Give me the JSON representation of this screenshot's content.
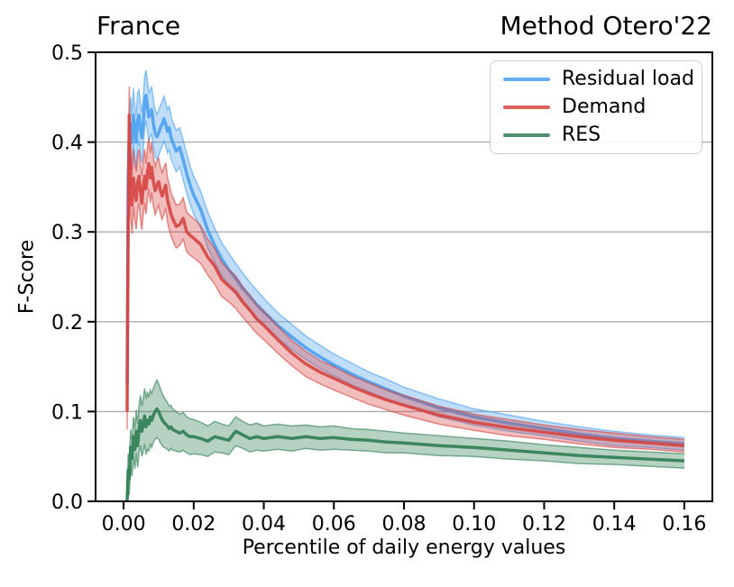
{
  "chart_data": {
    "type": "line",
    "title_left": "France",
    "title_right": "Method Otero'22",
    "xlabel": "Percentile of daily energy values",
    "ylabel": "F-Score",
    "xlim": [
      -0.008,
      0.168
    ],
    "ylim": [
      0.0,
      0.5
    ],
    "xticks": [
      0.0,
      0.02,
      0.04,
      0.06,
      0.08,
      0.1,
      0.12,
      0.14,
      0.16
    ],
    "xtick_labels": [
      "0.00",
      "0.02",
      "0.04",
      "0.06",
      "0.08",
      "0.10",
      "0.12",
      "0.14",
      "0.16"
    ],
    "yticks": [
      0.0,
      0.1,
      0.2,
      0.3,
      0.4,
      0.5
    ],
    "ytick_labels": [
      "0.0",
      "0.1",
      "0.2",
      "0.3",
      "0.4",
      "0.5"
    ],
    "grid": {
      "axis": "y",
      "color": "#adadad"
    },
    "legend": {
      "position": "upper right",
      "entries": [
        {
          "label": "Residual load",
          "color": "#4aa0f0"
        },
        {
          "label": "Demand",
          "color": "#d64541"
        },
        {
          "label": "RES",
          "color": "#2f7d54"
        }
      ]
    },
    "x": [
      0.001,
      0.0013,
      0.0016,
      0.002,
      0.0024,
      0.0028,
      0.0032,
      0.0036,
      0.004,
      0.0044,
      0.0048,
      0.0052,
      0.0056,
      0.006,
      0.0064,
      0.0068,
      0.0072,
      0.0076,
      0.008,
      0.0085,
      0.009,
      0.0095,
      0.01,
      0.0105,
      0.011,
      0.0115,
      0.012,
      0.0125,
      0.013,
      0.0135,
      0.014,
      0.015,
      0.016,
      0.017,
      0.018,
      0.019,
      0.02,
      0.022,
      0.024,
      0.026,
      0.028,
      0.03,
      0.032,
      0.034,
      0.036,
      0.038,
      0.04,
      0.044,
      0.048,
      0.052,
      0.056,
      0.06,
      0.065,
      0.07,
      0.075,
      0.08,
      0.09,
      0.1,
      0.11,
      0.12,
      0.13,
      0.14,
      0.15,
      0.16
    ],
    "series": [
      {
        "name": "Residual load",
        "key": "residual-load",
        "color": "#4aa0f0",
        "y": [
          0.13,
          0.36,
          0.4,
          0.42,
          0.4,
          0.43,
          0.41,
          0.4,
          0.425,
          0.43,
          0.415,
          0.405,
          0.42,
          0.445,
          0.452,
          0.44,
          0.428,
          0.432,
          0.436,
          0.42,
          0.41,
          0.406,
          0.41,
          0.416,
          0.42,
          0.426,
          0.42,
          0.412,
          0.416,
          0.406,
          0.4,
          0.39,
          0.394,
          0.38,
          0.365,
          0.352,
          0.341,
          0.325,
          0.302,
          0.285,
          0.27,
          0.258,
          0.248,
          0.237,
          0.228,
          0.219,
          0.211,
          0.196,
          0.183,
          0.171,
          0.161,
          0.152,
          0.142,
          0.133,
          0.125,
          0.117,
          0.104,
          0.094,
          0.087,
          0.081,
          0.075,
          0.07,
          0.067,
          0.064
        ],
        "band": [
          0.02,
          0.03,
          0.03,
          0.03,
          0.03,
          0.03,
          0.03,
          0.03,
          0.03,
          0.028,
          0.028,
          0.028,
          0.028,
          0.028,
          0.028,
          0.028,
          0.026,
          0.026,
          0.026,
          0.026,
          0.026,
          0.025,
          0.025,
          0.025,
          0.025,
          0.025,
          0.024,
          0.024,
          0.024,
          0.024,
          0.023,
          0.023,
          0.022,
          0.022,
          0.022,
          0.021,
          0.021,
          0.02,
          0.02,
          0.019,
          0.018,
          0.018,
          0.017,
          0.017,
          0.016,
          0.016,
          0.015,
          0.014,
          0.014,
          0.013,
          0.013,
          0.012,
          0.012,
          0.011,
          0.011,
          0.01,
          0.01,
          0.009,
          0.009,
          0.008,
          0.008,
          0.008,
          0.007,
          0.007
        ]
      },
      {
        "name": "Demand",
        "key": "demand",
        "color": "#d64541",
        "y": [
          0.1,
          0.3,
          0.43,
          0.35,
          0.33,
          0.36,
          0.345,
          0.335,
          0.355,
          0.362,
          0.345,
          0.332,
          0.35,
          0.362,
          0.348,
          0.366,
          0.376,
          0.36,
          0.372,
          0.356,
          0.346,
          0.352,
          0.356,
          0.346,
          0.34,
          0.346,
          0.352,
          0.336,
          0.328,
          0.32,
          0.315,
          0.306,
          0.308,
          0.315,
          0.3,
          0.296,
          0.293,
          0.286,
          0.272,
          0.262,
          0.247,
          0.24,
          0.233,
          0.222,
          0.213,
          0.203,
          0.196,
          0.18,
          0.165,
          0.153,
          0.144,
          0.137,
          0.128,
          0.12,
          0.113,
          0.107,
          0.096,
          0.088,
          0.082,
          0.077,
          0.072,
          0.068,
          0.065,
          0.062
        ],
        "band": [
          0.02,
          0.032,
          0.032,
          0.032,
          0.032,
          0.032,
          0.032,
          0.032,
          0.03,
          0.03,
          0.03,
          0.03,
          0.03,
          0.03,
          0.028,
          0.028,
          0.028,
          0.028,
          0.028,
          0.027,
          0.027,
          0.027,
          0.026,
          0.026,
          0.026,
          0.026,
          0.025,
          0.025,
          0.025,
          0.024,
          0.024,
          0.024,
          0.023,
          0.023,
          0.022,
          0.022,
          0.022,
          0.021,
          0.02,
          0.02,
          0.019,
          0.018,
          0.018,
          0.017,
          0.017,
          0.016,
          0.016,
          0.015,
          0.014,
          0.014,
          0.013,
          0.013,
          0.012,
          0.012,
          0.011,
          0.011,
          0.01,
          0.009,
          0.009,
          0.008,
          0.008,
          0.008,
          0.007,
          0.007
        ]
      },
      {
        "name": "RES",
        "key": "res",
        "color": "#2f7d54",
        "y": [
          0.0,
          0.035,
          0.025,
          0.06,
          0.048,
          0.072,
          0.058,
          0.078,
          0.062,
          0.08,
          0.09,
          0.078,
          0.085,
          0.095,
          0.083,
          0.09,
          0.086,
          0.094,
          0.09,
          0.096,
          0.1,
          0.103,
          0.1,
          0.095,
          0.091,
          0.088,
          0.086,
          0.084,
          0.081,
          0.083,
          0.08,
          0.078,
          0.076,
          0.078,
          0.074,
          0.072,
          0.072,
          0.07,
          0.067,
          0.072,
          0.07,
          0.068,
          0.078,
          0.074,
          0.07,
          0.072,
          0.07,
          0.072,
          0.07,
          0.072,
          0.07,
          0.071,
          0.069,
          0.068,
          0.066,
          0.065,
          0.062,
          0.06,
          0.057,
          0.054,
          0.051,
          0.049,
          0.047,
          0.045
        ],
        "band": [
          0.004,
          0.018,
          0.018,
          0.02,
          0.02,
          0.022,
          0.022,
          0.024,
          0.024,
          0.026,
          0.028,
          0.028,
          0.029,
          0.031,
          0.031,
          0.032,
          0.03,
          0.03,
          0.03,
          0.03,
          0.031,
          0.032,
          0.031,
          0.03,
          0.029,
          0.028,
          0.027,
          0.026,
          0.025,
          0.024,
          0.023,
          0.022,
          0.021,
          0.021,
          0.02,
          0.02,
          0.019,
          0.018,
          0.017,
          0.017,
          0.016,
          0.016,
          0.016,
          0.015,
          0.015,
          0.015,
          0.014,
          0.014,
          0.014,
          0.013,
          0.013,
          0.013,
          0.012,
          0.012,
          0.012,
          0.011,
          0.011,
          0.01,
          0.01,
          0.009,
          0.009,
          0.008,
          0.008,
          0.008
        ]
      }
    ]
  }
}
